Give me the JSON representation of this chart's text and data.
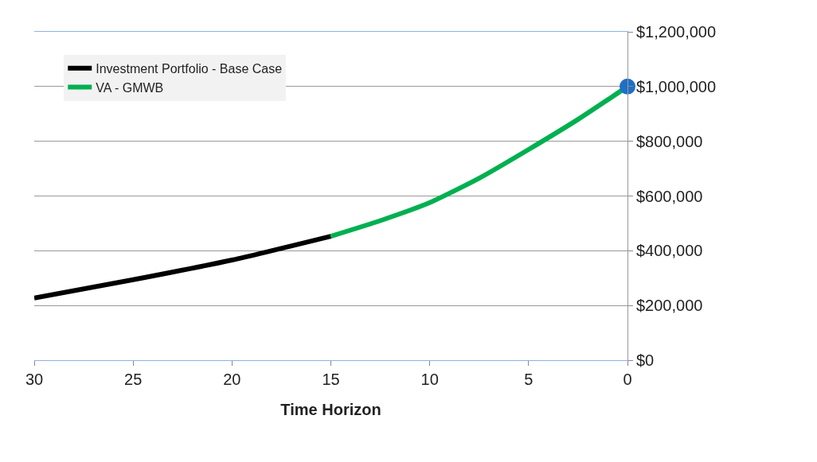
{
  "chart_data": {
    "type": "line",
    "xlabel": "Time Horizon",
    "xlim": [
      30,
      0
    ],
    "xticks": [
      30,
      25,
      20,
      15,
      10,
      5,
      0
    ],
    "ylim": [
      0,
      1200000
    ],
    "yticks": [
      {
        "value": 0,
        "label": "$0"
      },
      {
        "value": 200000,
        "label": "$200,000"
      },
      {
        "value": 400000,
        "label": "$400,000"
      },
      {
        "value": 600000,
        "label": "$600,000"
      },
      {
        "value": 800000,
        "label": "$800,000"
      },
      {
        "value": 1000000,
        "label": "$1,000,000"
      },
      {
        "value": 1200000,
        "label": "$1,200,000"
      }
    ],
    "grid": "y",
    "legend": "top left",
    "line_style": "solid",
    "series": [
      {
        "name": "Investment Portfolio - Base Case",
        "color": "#000000",
        "x": [
          30,
          25,
          20,
          15
        ],
        "values": [
          227000,
          294000,
          366000,
          453000
        ]
      },
      {
        "name": "VA - GMWB",
        "color": "#00b050",
        "x": [
          15,
          12.5,
          10,
          7.5,
          5,
          2.5,
          0
        ],
        "values": [
          453000,
          510000,
          576000,
          665000,
          770000,
          880000,
          1000000
        ]
      },
      {
        "type": "scatter",
        "marker": "circle",
        "color": "#1f6fc5",
        "x": [
          0
        ],
        "values": [
          1000000
        ]
      }
    ]
  }
}
